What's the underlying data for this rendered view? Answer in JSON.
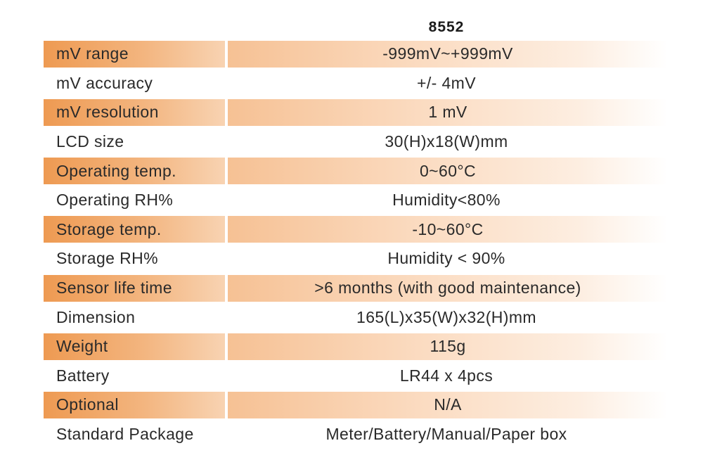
{
  "header": {
    "model": "8552"
  },
  "rows": [
    {
      "label": "mV range",
      "value": "-999mV~+999mV"
    },
    {
      "label": "mV accuracy",
      "value": "+/- 4mV"
    },
    {
      "label": "mV resolution",
      "value": "1 mV"
    },
    {
      "label": "LCD size",
      "value": "30(H)x18(W)mm"
    },
    {
      "label": "Operating temp.",
      "value": "0~60°C"
    },
    {
      "label": "Operating RH%",
      "value": "Humidity<80%"
    },
    {
      "label": "Storage temp.",
      "value": "-10~60°C"
    },
    {
      "label": "Storage RH%",
      "value": "Humidity < 90%"
    },
    {
      "label": "Sensor life time",
      "value": ">6 months (with good maintenance)"
    },
    {
      "label": "Dimension",
      "value": "165(L)x35(W)x32(H)mm"
    },
    {
      "label": "Weight",
      "value": "115g"
    },
    {
      "label": "Battery",
      "value": "LR44 x 4pcs"
    },
    {
      "label": "Optional",
      "value": "N/A"
    },
    {
      "label": "Standard Package",
      "value": "Meter/Battery/Manual/Paper box"
    }
  ],
  "colors": {
    "shade_dark": "#ee9a52",
    "shade_light": "#fdeee1"
  }
}
